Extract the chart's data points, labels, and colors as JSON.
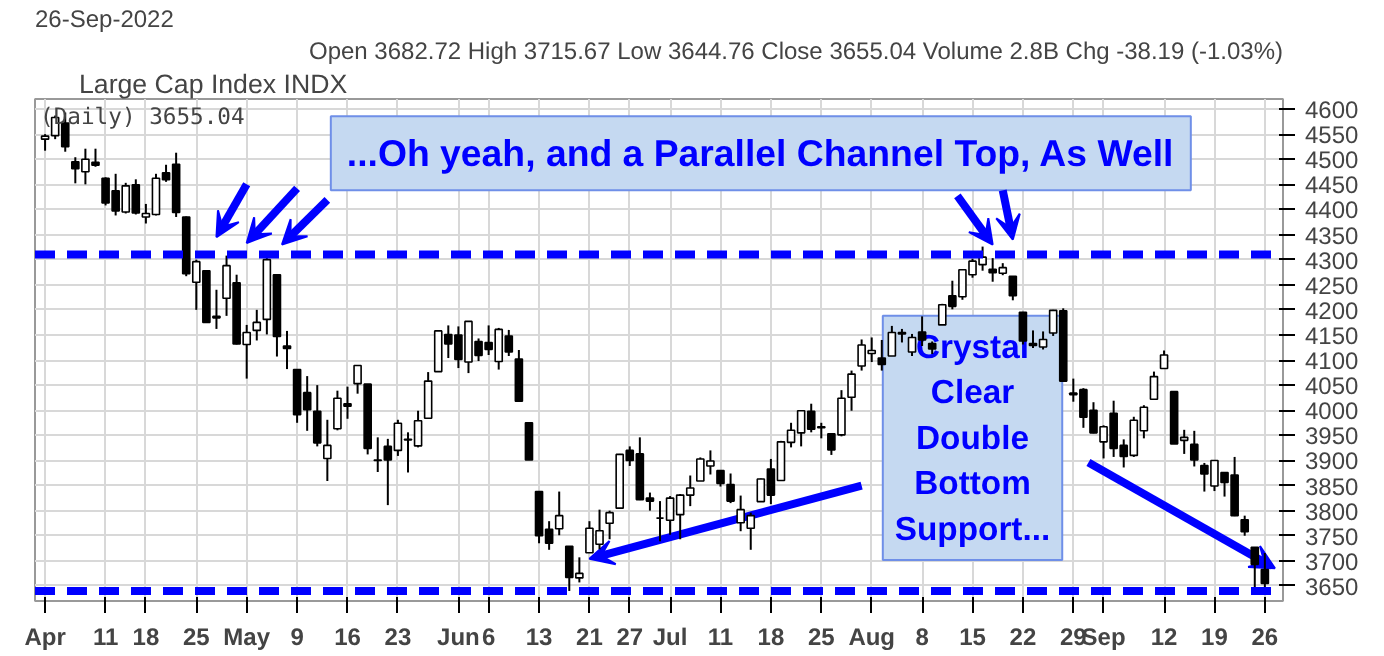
{
  "chart_data": {
    "type": "candlestick",
    "title": "Large Cap Index INDX",
    "subtitle": "26-Sep-2022",
    "annotations": [
      "Open 3682.72 High 3715.67 Low 3644.76 Close 3655.04 Volume 2.8B Chg -38.19 (-1.03%)",
      "(Daily) 3655.04",
      "...Oh yeah, and a Parallel Channel Top, As Well",
      {
        "text": "Crystal Clear Double Bottom Support...",
        "y": 3640
      }
    ],
    "categories": [
      "Apr",
      null,
      null,
      null,
      null,
      null,
      "11",
      null,
      null,
      null,
      "18",
      null,
      null,
      null,
      null,
      "25",
      null,
      null,
      null,
      null,
      "May",
      null,
      null,
      null,
      null,
      "9",
      null,
      null,
      null,
      null,
      "16",
      null,
      null,
      null,
      null,
      "23",
      null,
      null,
      null,
      null,
      null,
      "Jun",
      null,
      null,
      "6",
      null,
      null,
      null,
      null,
      "13",
      null,
      null,
      null,
      null,
      "21",
      null,
      null,
      null,
      "27",
      null,
      null,
      null,
      "Jul",
      null,
      null,
      null,
      null,
      "11",
      null,
      null,
      null,
      null,
      "18",
      null,
      null,
      null,
      null,
      "25",
      null,
      null,
      null,
      null,
      "Aug",
      null,
      null,
      null,
      null,
      "8",
      null,
      null,
      null,
      null,
      "15",
      null,
      null,
      null,
      null,
      "22",
      null,
      null,
      null,
      null,
      "29",
      null,
      null,
      "Sep",
      null,
      null,
      null,
      null,
      null,
      "12",
      null,
      null,
      null,
      null,
      "19",
      null,
      null,
      null,
      null,
      "26"
    ],
    "ohlc": [
      [
        4540,
        4550,
        4517,
        4546
      ],
      [
        4547,
        4587,
        4540,
        4583
      ],
      [
        4572,
        4593,
        4515,
        4525
      ],
      [
        4495,
        4504,
        4452,
        4481
      ],
      [
        4475,
        4521,
        4450,
        4500
      ],
      [
        4494,
        4521,
        4485,
        4488
      ],
      [
        4462,
        4464,
        4408,
        4413
      ],
      [
        4437,
        4471,
        4388,
        4397
      ],
      [
        4395,
        4453,
        4392,
        4447
      ],
      [
        4449,
        4460,
        4390,
        4393
      ],
      [
        4385,
        4411,
        4372,
        4392
      ],
      [
        4390,
        4471,
        4388,
        4462
      ],
      [
        4473,
        4489,
        4455,
        4459
      ],
      [
        4490,
        4513,
        4385,
        4394
      ],
      [
        4385,
        4386,
        4267,
        4272
      ],
      [
        4255,
        4300,
        4200,
        4296
      ],
      [
        4278,
        4279,
        4175,
        4175
      ],
      [
        4187,
        4240,
        4162,
        4184
      ],
      [
        4223,
        4308,
        4188,
        4288
      ],
      [
        4254,
        4270,
        4131,
        4132
      ],
      [
        4131,
        4170,
        4063,
        4155
      ],
      [
        4159,
        4200,
        4139,
        4175
      ],
      [
        4181,
        4308,
        4151,
        4300
      ],
      [
        4270,
        4271,
        4107,
        4147
      ],
      [
        4128,
        4158,
        4082,
        4123
      ],
      [
        4081,
        4082,
        3975,
        3991
      ],
      [
        4035,
        4068,
        3959,
        4001
      ],
      [
        3998,
        4050,
        3928,
        3935
      ],
      [
        3904,
        3981,
        3859,
        3930
      ],
      [
        3963,
        4039,
        3960,
        4024
      ],
      [
        4013,
        4047,
        3983,
        4008
      ],
      [
        4053,
        4090,
        4033,
        4089
      ],
      [
        4052,
        4052,
        3912,
        3924
      ],
      [
        3900,
        3946,
        3877,
        3901
      ],
      [
        3928,
        3943,
        3811,
        3901
      ],
      [
        3920,
        3981,
        3909,
        3974
      ],
      [
        3942,
        3956,
        3876,
        3941
      ],
      [
        3929,
        3999,
        3926,
        3979
      ],
      [
        3984,
        4076,
        3984,
        4058
      ],
      [
        4077,
        4159,
        4077,
        4158
      ],
      [
        4151,
        4169,
        4104,
        4132
      ],
      [
        4150,
        4167,
        4084,
        4101
      ],
      [
        4096,
        4177,
        4074,
        4177
      ],
      [
        4137,
        4143,
        4098,
        4109
      ],
      [
        4135,
        4169,
        4110,
        4121
      ],
      [
        4097,
        4164,
        4081,
        4161
      ],
      [
        4148,
        4160,
        4108,
        4116
      ],
      [
        4102,
        4120,
        4017,
        4018
      ],
      [
        3975,
        3975,
        3901,
        3901
      ],
      [
        3838,
        3838,
        3735,
        3750
      ],
      [
        3763,
        3779,
        3722,
        3735
      ],
      [
        3764,
        3838,
        3751,
        3790
      ],
      [
        3729,
        3729,
        3640,
        3667
      ],
      [
        3666,
        3707,
        3657,
        3675
      ],
      [
        3716,
        3779,
        3716,
        3765
      ],
      [
        3733,
        3802,
        3723,
        3760
      ],
      [
        3775,
        3800,
        3743,
        3796
      ],
      [
        3805,
        3913,
        3805,
        3912
      ],
      [
        3920,
        3928,
        3889,
        3900
      ],
      [
        3913,
        3946,
        3821,
        3822
      ],
      [
        3825,
        3836,
        3800,
        3819
      ],
      [
        3785,
        3819,
        3739,
        3785
      ],
      [
        3781,
        3829,
        3752,
        3825
      ],
      [
        3792,
        3833,
        3743,
        3831
      ],
      [
        3831,
        3870,
        3809,
        3845
      ],
      [
        3859,
        3906,
        3859,
        3903
      ],
      [
        3889,
        3920,
        3872,
        3899
      ],
      [
        3880,
        3880,
        3848,
        3854
      ],
      [
        3852,
        3874,
        3815,
        3819
      ],
      [
        3776,
        3830,
        3759,
        3802
      ],
      [
        3765,
        3796,
        3722,
        3790
      ],
      [
        3818,
        3864,
        3818,
        3863
      ],
      [
        3883,
        3903,
        3813,
        3831
      ],
      [
        3860,
        3939,
        3860,
        3937
      ],
      [
        3936,
        3975,
        3926,
        3960
      ],
      [
        3955,
        3999,
        3928,
        3999
      ],
      [
        3998,
        4013,
        3956,
        3962
      ],
      [
        3965,
        3975,
        3944,
        3967
      ],
      [
        3953,
        3954,
        3911,
        3921
      ],
      [
        3951,
        4040,
        3948,
        4024
      ],
      [
        4026,
        4079,
        3999,
        4072
      ],
      [
        4088,
        4141,
        4079,
        4130
      ],
      [
        4113,
        4145,
        4096,
        4119
      ],
      [
        4104,
        4140,
        4079,
        4091
      ],
      [
        4108,
        4168,
        4108,
        4155
      ],
      [
        4155,
        4162,
        4135,
        4152
      ],
      [
        4116,
        4152,
        4108,
        4145
      ],
      [
        4156,
        4187,
        4128,
        4140
      ],
      [
        4133,
        4137,
        4112,
        4122
      ],
      [
        4170,
        4212,
        4170,
        4210
      ],
      [
        4228,
        4258,
        4201,
        4207
      ],
      [
        4226,
        4281,
        4220,
        4280
      ],
      [
        4270,
        4302,
        4264,
        4297
      ],
      [
        4290,
        4326,
        4278,
        4305
      ],
      [
        4281,
        4303,
        4256,
        4274
      ],
      [
        4273,
        4293,
        4269,
        4284
      ],
      [
        4267,
        4267,
        4219,
        4228
      ],
      [
        4195,
        4196,
        4131,
        4138
      ],
      [
        4133,
        4159,
        4124,
        4129
      ],
      [
        4126,
        4157,
        4121,
        4141
      ],
      [
        4154,
        4200,
        4148,
        4199
      ],
      [
        4198,
        4203,
        4057,
        4058
      ],
      [
        4034,
        4063,
        4017,
        4031
      ],
      [
        4041,
        4044,
        3965,
        3986
      ],
      [
        4000,
        4016,
        3954,
        3955
      ],
      [
        3937,
        3970,
        3904,
        3967
      ],
      [
        3994,
        4019,
        3907,
        3924
      ],
      [
        3930,
        3942,
        3886,
        3908
      ],
      [
        3910,
        3987,
        3907,
        3980
      ],
      [
        3959,
        4010,
        3944,
        4006
      ],
      [
        4022,
        4077,
        4022,
        4067
      ],
      [
        4083,
        4119,
        4083,
        4110
      ],
      [
        4037,
        4038,
        3933,
        3933
      ],
      [
        3940,
        3961,
        3913,
        3946
      ],
      [
        3932,
        3959,
        3888,
        3901
      ],
      [
        3890,
        3895,
        3838,
        3873
      ],
      [
        3849,
        3900,
        3839,
        3900
      ],
      [
        3876,
        3876,
        3828,
        3856
      ],
      [
        3871,
        3907,
        3789,
        3790
      ],
      [
        3782,
        3790,
        3750,
        3758
      ],
      [
        3727,
        3727,
        3647,
        3693
      ],
      [
        3682.72,
        3715.67,
        3644.76,
        3655.04
      ]
    ],
    "ylim": [
      3620,
      4620
    ],
    "yticks": [
      3650,
      3700,
      3750,
      3800,
      3850,
      3900,
      3950,
      4000,
      4050,
      4100,
      4150,
      4200,
      4250,
      4300,
      4350,
      4400,
      4450,
      4500,
      4550,
      4600
    ],
    "grid": true,
    "ref_lines": [
      {
        "axis": "y",
        "value": 4310,
        "color": "#0000ff",
        "line_style": "dashed"
      },
      {
        "axis": "y",
        "value": 3640,
        "color": "#0000ff",
        "line_style": "dashed"
      }
    ]
  }
}
